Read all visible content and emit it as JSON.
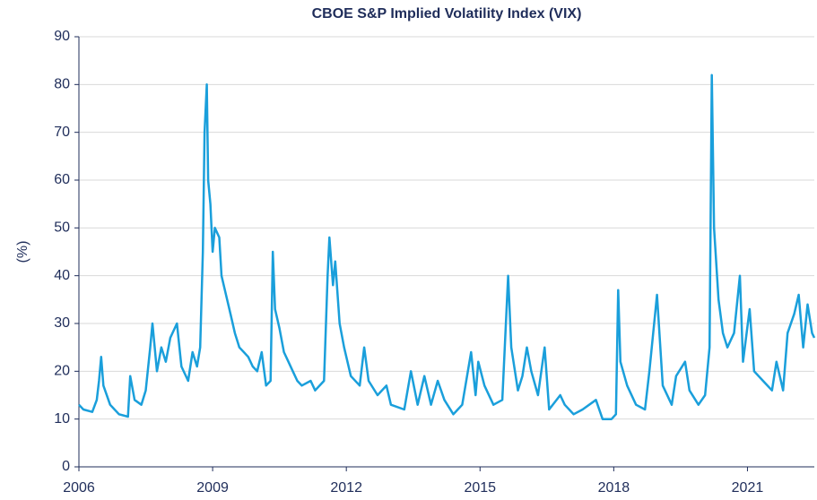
{
  "chart_data": {
    "type": "line",
    "title": "CBOE S&P Implied Volatility Index (VIX)",
    "ylabel": "(%)",
    "color": "#1a9fdb",
    "x": [
      2006.0,
      2006.1,
      2006.3,
      2006.4,
      2006.45,
      2006.5,
      2006.55,
      2006.7,
      2006.9,
      2007.1,
      2007.15,
      2007.25,
      2007.4,
      2007.5,
      2007.6,
      2007.65,
      2007.75,
      2007.85,
      2007.95,
      2008.05,
      2008.2,
      2008.3,
      2008.45,
      2008.55,
      2008.65,
      2008.72,
      2008.78,
      2008.82,
      2008.87,
      2008.9,
      2008.95,
      2009.0,
      2009.05,
      2009.15,
      2009.2,
      2009.3,
      2009.4,
      2009.5,
      2009.6,
      2009.7,
      2009.8,
      2009.9,
      2010.0,
      2010.1,
      2010.2,
      2010.3,
      2010.35,
      2010.4,
      2010.5,
      2010.6,
      2010.7,
      2010.8,
      2010.9,
      2011.0,
      2011.2,
      2011.3,
      2011.5,
      2011.58,
      2011.62,
      2011.7,
      2011.75,
      2011.85,
      2011.95,
      2012.1,
      2012.3,
      2012.4,
      2012.5,
      2012.7,
      2012.9,
      2013.0,
      2013.3,
      2013.45,
      2013.6,
      2013.75,
      2013.9,
      2014.05,
      2014.2,
      2014.4,
      2014.6,
      2014.8,
      2014.9,
      2014.96,
      2015.1,
      2015.3,
      2015.5,
      2015.63,
      2015.7,
      2015.85,
      2015.95,
      2016.05,
      2016.15,
      2016.3,
      2016.45,
      2016.55,
      2016.8,
      2016.9,
      2017.1,
      2017.3,
      2017.6,
      2017.75,
      2017.95,
      2018.05,
      2018.1,
      2018.15,
      2018.3,
      2018.5,
      2018.7,
      2018.8,
      2018.97,
      2019.1,
      2019.3,
      2019.4,
      2019.6,
      2019.7,
      2019.9,
      2020.05,
      2020.15,
      2020.2,
      2020.25,
      2020.35,
      2020.45,
      2020.55,
      2020.7,
      2020.83,
      2020.9,
      2021.05,
      2021.15,
      2021.35,
      2021.55,
      2021.65,
      2021.8,
      2021.9,
      2022.05,
      2022.15,
      2022.25,
      2022.35,
      2022.45,
      2022.5
    ],
    "values": [
      13,
      12,
      11.5,
      14,
      18,
      23,
      17,
      13,
      11,
      10.5,
      19,
      14,
      13,
      16,
      25,
      30,
      20,
      25,
      22,
      27,
      30,
      21,
      18,
      24,
      21,
      25,
      45,
      70,
      80,
      60,
      55,
      45,
      50,
      48,
      40,
      36,
      32,
      28,
      25,
      24,
      23,
      21,
      20,
      24,
      17,
      18,
      45,
      33,
      29,
      24,
      22,
      20,
      18,
      17,
      18,
      16,
      18,
      40,
      48,
      38,
      43,
      30,
      25,
      19,
      17,
      25,
      18,
      15,
      17,
      13,
      12,
      20,
      13,
      19,
      13,
      18,
      14,
      11,
      13,
      24,
      15,
      22,
      17,
      13,
      14,
      40,
      25,
      16,
      19,
      25,
      20,
      15,
      25,
      12,
      15,
      13,
      11,
      12,
      14,
      10,
      10,
      11,
      37,
      22,
      17,
      13,
      12,
      20,
      36,
      17,
      13,
      19,
      22,
      16,
      13,
      15,
      25,
      82,
      50,
      35,
      28,
      25,
      28,
      40,
      22,
      33,
      20,
      18,
      16,
      22,
      16,
      28,
      32,
      36,
      25,
      34,
      28,
      27
    ],
    "xlim": [
      2006,
      2022.5
    ],
    "xticks": [
      2006,
      2009,
      2012,
      2015,
      2018,
      2021
    ],
    "ylim": [
      0,
      90
    ],
    "yticks": [
      0,
      10,
      20,
      30,
      40,
      50,
      60,
      70,
      80,
      90
    ],
    "grid": true
  }
}
